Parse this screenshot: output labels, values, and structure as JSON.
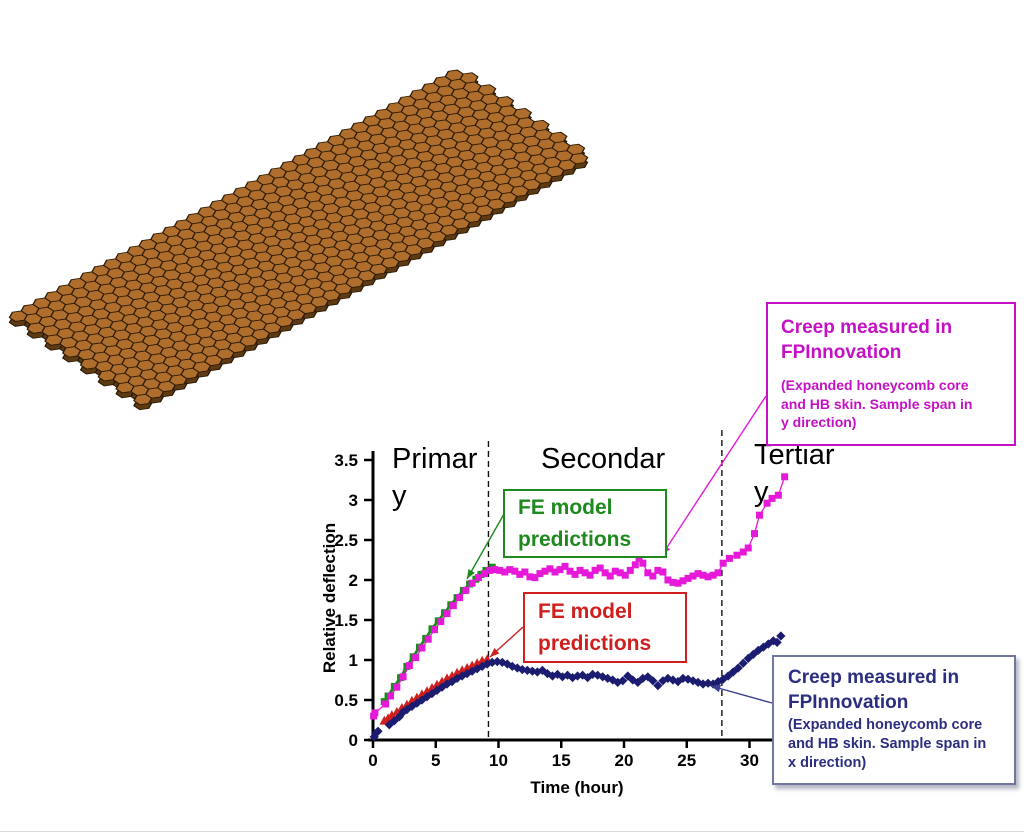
{
  "honeycomb": {
    "description": "expanded honeycomb core panel (3D view)",
    "top_color": "#b06e2c",
    "side_color": "#5e3a13",
    "outline_color": "#2a1a06",
    "side_outline_color": "#241604"
  },
  "chart_data": {
    "type": "scatter",
    "title": "",
    "xlabel": "Time (hour)",
    "ylabel": "Relative deflection",
    "xlim": [
      0,
      32.5
    ],
    "ylim": [
      0,
      3.5
    ],
    "xticks": [
      0,
      5,
      10,
      15,
      20,
      25,
      30
    ],
    "yticks": [
      0,
      0.5,
      1,
      1.5,
      2,
      2.5,
      3,
      3.5
    ],
    "grid": false,
    "legend_position": "none (labeled by callout boxes)",
    "phase_dividers_hours": [
      9.2,
      27.8
    ],
    "phases": [
      {
        "label": "Primary",
        "lines": [
          "Primar",
          "y"
        ]
      },
      {
        "label": "Secondary",
        "lines": [
          "Secondar",
          "y"
        ]
      },
      {
        "label": "Tertiary",
        "lines": [
          "Tertiar",
          "y"
        ]
      }
    ],
    "series": [
      {
        "name": "FE model predictions (sample span in y direction)",
        "color": "#1e8a1e",
        "marker": "square",
        "line": true,
        "line_width": 2.8,
        "points": [
          [
            0.9,
            0.48
          ],
          [
            1.2,
            0.55
          ],
          [
            1.7,
            0.67
          ],
          [
            2.2,
            0.78
          ],
          [
            2.7,
            0.92
          ],
          [
            3.2,
            1.04
          ],
          [
            3.7,
            1.16
          ],
          [
            4.2,
            1.27
          ],
          [
            4.7,
            1.39
          ],
          [
            5.2,
            1.49
          ],
          [
            5.7,
            1.59
          ],
          [
            6.2,
            1.69
          ],
          [
            6.7,
            1.78
          ],
          [
            7.2,
            1.87
          ],
          [
            7.7,
            1.95
          ],
          [
            8.2,
            2.01
          ],
          [
            8.6,
            2.07
          ],
          [
            9.0,
            2.12
          ],
          [
            9.5,
            2.16
          ]
        ]
      },
      {
        "name": "Creep measured in FPInnovation (sample span in y direction)",
        "color": "#e619d8",
        "marker": "square",
        "line": true,
        "line_width": 1.3,
        "points": [
          [
            0.05,
            0.3
          ],
          [
            0.15,
            0.34
          ],
          [
            1.0,
            0.45
          ],
          [
            1.4,
            0.55
          ],
          [
            1.9,
            0.66
          ],
          [
            2.4,
            0.79
          ],
          [
            2.9,
            0.93
          ],
          [
            3.4,
            1.03
          ],
          [
            3.9,
            1.15
          ],
          [
            4.4,
            1.26
          ],
          [
            4.9,
            1.38
          ],
          [
            5.4,
            1.48
          ],
          [
            5.9,
            1.58
          ],
          [
            6.4,
            1.68
          ],
          [
            6.9,
            1.78
          ],
          [
            7.4,
            1.87
          ],
          [
            7.9,
            1.96
          ],
          [
            8.4,
            2.03
          ],
          [
            8.9,
            2.08
          ],
          [
            9.3,
            2.12
          ],
          [
            9.7,
            2.13
          ],
          [
            10.1,
            2.12
          ],
          [
            10.5,
            2.1
          ],
          [
            10.9,
            2.13
          ],
          [
            11.3,
            2.11
          ],
          [
            11.7,
            2.07
          ],
          [
            12.1,
            2.1
          ],
          [
            12.5,
            2.04
          ],
          [
            12.9,
            2.03
          ],
          [
            13.3,
            2.08
          ],
          [
            13.7,
            2.11
          ],
          [
            14.1,
            2.14
          ],
          [
            14.5,
            2.1
          ],
          [
            14.9,
            2.13
          ],
          [
            15.3,
            2.17
          ],
          [
            15.7,
            2.11
          ],
          [
            16.1,
            2.07
          ],
          [
            16.5,
            2.12
          ],
          [
            16.9,
            2.09
          ],
          [
            17.3,
            2.06
          ],
          [
            17.7,
            2.12
          ],
          [
            18.1,
            2.15
          ],
          [
            18.5,
            2.09
          ],
          [
            18.9,
            2.05
          ],
          [
            19.3,
            2.11
          ],
          [
            19.7,
            2.09
          ],
          [
            20.1,
            2.06
          ],
          [
            20.5,
            2.12
          ],
          [
            20.9,
            2.19
          ],
          [
            21.2,
            2.27
          ],
          [
            21.5,
            2.21
          ],
          [
            21.9,
            2.09
          ],
          [
            22.3,
            2.05
          ],
          [
            22.7,
            2.12
          ],
          [
            23.1,
            2.1
          ],
          [
            23.5,
            2.0
          ],
          [
            23.9,
            1.97
          ],
          [
            24.3,
            1.96
          ],
          [
            24.7,
            1.99
          ],
          [
            25.1,
            2.02
          ],
          [
            25.5,
            2.05
          ],
          [
            25.9,
            2.08
          ],
          [
            26.3,
            2.06
          ],
          [
            26.7,
            2.04
          ],
          [
            27.1,
            2.06
          ],
          [
            27.5,
            2.09
          ],
          [
            27.9,
            2.21
          ],
          [
            28.4,
            2.27
          ],
          [
            29.0,
            2.31
          ],
          [
            29.5,
            2.35
          ],
          [
            29.9,
            2.4
          ],
          [
            30.4,
            2.58
          ],
          [
            30.8,
            2.81
          ],
          [
            31.4,
            2.96
          ],
          [
            31.8,
            3.02
          ],
          [
            32.3,
            3.06
          ],
          [
            32.8,
            3.29
          ]
        ]
      },
      {
        "name": "FE model predictions (sample span in x direction)",
        "color": "#cf1f1f",
        "marker": "triangle",
        "line": true,
        "line_width": 1.5,
        "points": [
          [
            0.9,
            0.24
          ],
          [
            1.2,
            0.27
          ],
          [
            1.5,
            0.31
          ],
          [
            1.9,
            0.35
          ],
          [
            2.3,
            0.4
          ],
          [
            2.7,
            0.44
          ],
          [
            3.1,
            0.49
          ],
          [
            3.5,
            0.53
          ],
          [
            3.9,
            0.57
          ],
          [
            4.3,
            0.61
          ],
          [
            4.7,
            0.65
          ],
          [
            5.1,
            0.69
          ],
          [
            5.5,
            0.73
          ],
          [
            5.9,
            0.77
          ],
          [
            6.3,
            0.8
          ],
          [
            6.7,
            0.84
          ],
          [
            7.1,
            0.87
          ],
          [
            7.5,
            0.9
          ],
          [
            7.9,
            0.93
          ],
          [
            8.3,
            0.96
          ],
          [
            8.7,
            0.99
          ],
          [
            9.1,
            1.01
          ]
        ]
      },
      {
        "name": "Creep measured in FPInnovation (sample span in x direction)",
        "color": "#1b1b6f",
        "marker": "diamond",
        "line": false,
        "line_width": 0,
        "points": [
          [
            0.1,
            0.04
          ],
          [
            0.2,
            0.08
          ],
          [
            0.4,
            0.11
          ],
          [
            1.3,
            0.19
          ],
          [
            1.7,
            0.24
          ],
          [
            2.1,
            0.29
          ],
          [
            2.4,
            0.35
          ],
          [
            2.7,
            0.38
          ],
          [
            3.1,
            0.42
          ],
          [
            3.5,
            0.46
          ],
          [
            3.9,
            0.5
          ],
          [
            4.3,
            0.54
          ],
          [
            4.7,
            0.58
          ],
          [
            5.1,
            0.62
          ],
          [
            5.5,
            0.66
          ],
          [
            5.9,
            0.7
          ],
          [
            6.3,
            0.73
          ],
          [
            6.7,
            0.77
          ],
          [
            7.1,
            0.8
          ],
          [
            7.5,
            0.83
          ],
          [
            7.9,
            0.86
          ],
          [
            8.3,
            0.89
          ],
          [
            8.7,
            0.92
          ],
          [
            9.1,
            0.95
          ],
          [
            9.5,
            0.97
          ],
          [
            9.9,
            0.98
          ],
          [
            10.3,
            0.97
          ],
          [
            10.7,
            0.95
          ],
          [
            11.1,
            0.92
          ],
          [
            11.5,
            0.9
          ],
          [
            11.9,
            0.88
          ],
          [
            12.3,
            0.87
          ],
          [
            12.7,
            0.86
          ],
          [
            13.1,
            0.85
          ],
          [
            13.5,
            0.87
          ],
          [
            13.9,
            0.83
          ],
          [
            14.3,
            0.8
          ],
          [
            14.7,
            0.82
          ],
          [
            15.1,
            0.79
          ],
          [
            15.5,
            0.81
          ],
          [
            15.9,
            0.78
          ],
          [
            16.3,
            0.8
          ],
          [
            16.7,
            0.81
          ],
          [
            17.1,
            0.78
          ],
          [
            17.5,
            0.82
          ],
          [
            17.9,
            0.81
          ],
          [
            18.3,
            0.79
          ],
          [
            18.7,
            0.77
          ],
          [
            19.1,
            0.75
          ],
          [
            19.5,
            0.72
          ],
          [
            19.9,
            0.74
          ],
          [
            20.3,
            0.8
          ],
          [
            20.7,
            0.75
          ],
          [
            21.1,
            0.72
          ],
          [
            21.5,
            0.77
          ],
          [
            21.9,
            0.79
          ],
          [
            22.3,
            0.74
          ],
          [
            22.7,
            0.68
          ],
          [
            23.1,
            0.74
          ],
          [
            23.5,
            0.77
          ],
          [
            23.9,
            0.75
          ],
          [
            24.3,
            0.73
          ],
          [
            24.7,
            0.77
          ],
          [
            25.1,
            0.76
          ],
          [
            25.5,
            0.74
          ],
          [
            25.9,
            0.72
          ],
          [
            26.3,
            0.7
          ],
          [
            26.7,
            0.71
          ],
          [
            27.1,
            0.7
          ],
          [
            27.5,
            0.73
          ],
          [
            27.9,
            0.76
          ],
          [
            28.3,
            0.8
          ],
          [
            28.7,
            0.85
          ],
          [
            29.1,
            0.9
          ],
          [
            29.5,
            0.96
          ],
          [
            29.9,
            1.02
          ],
          [
            30.3,
            1.07
          ],
          [
            30.7,
            1.12
          ],
          [
            31.1,
            1.16
          ],
          [
            31.5,
            1.2
          ],
          [
            31.9,
            1.24
          ],
          [
            32.2,
            1.22
          ],
          [
            32.5,
            1.3
          ]
        ]
      }
    ]
  },
  "annotations": {
    "green_box": {
      "text": "FE model predictions",
      "lines": [
        "FE model",
        "predictions"
      ],
      "color": "#1e8a1e"
    },
    "red_box": {
      "text": "FE model predictions",
      "lines": [
        "FE model",
        "predictions"
      ],
      "color": "#cf1f1f"
    },
    "magenta_box": {
      "title": "Creep measured in FPInnovation",
      "title_lines": [
        "Creep measured in",
        "FPInnovation"
      ],
      "subtitle": "(Expanded honeycomb core and HB skin. Sample span in y direction)",
      "subtitle_lines": [
        "(Expanded honeycomb core",
        "and HB skin. Sample span in",
        "y direction)"
      ],
      "color": "#c511c5"
    },
    "navy_box": {
      "title": "Creep measured in FPInnovation",
      "title_lines": [
        "Creep measured in",
        "FPInnovation"
      ],
      "subtitle": "(Expanded honeycomb core and HB skin. Sample span in x direction)",
      "subtitle_lines": [
        "(Expanded honeycomb core",
        "and HB skin. Sample span in",
        "x direction)"
      ],
      "color": "#2b2e80"
    }
  }
}
